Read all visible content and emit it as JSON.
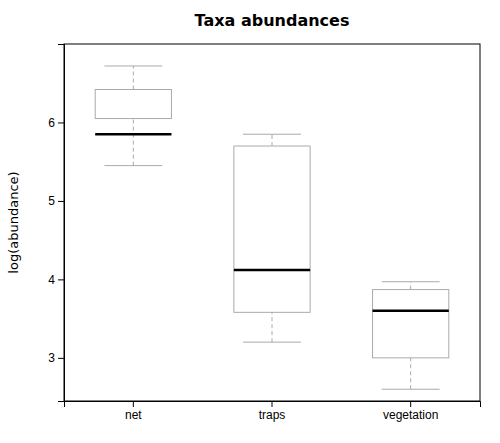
{
  "chart_data": {
    "type": "box",
    "title": "Taxa abundances",
    "ylabel": "log(abundance)",
    "categories": [
      "net",
      "traps",
      "vegetation"
    ],
    "boxes": [
      {
        "q1": 6.05,
        "median": 5.85,
        "q3": 6.42,
        "whisker_low": 5.45,
        "whisker_high": 6.72
      },
      {
        "q1": 3.58,
        "median": 4.12,
        "q3": 5.7,
        "whisker_low": 3.2,
        "whisker_high": 5.85
      },
      {
        "q1": 3.0,
        "median": 3.6,
        "q3": 3.87,
        "whisker_low": 2.6,
        "whisker_high": 3.97
      }
    ],
    "ylim": [
      2.45,
      7.0
    ],
    "yticks": [
      3,
      4,
      5,
      6
    ],
    "grid": false,
    "color": "#aaaaaa"
  }
}
